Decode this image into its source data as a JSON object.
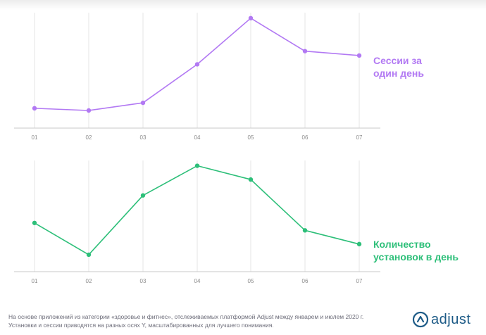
{
  "colors": {
    "sessions": "#b279f3",
    "installs": "#2dbf79",
    "grid": "#e6e6e6",
    "axis": "#c8c8c8",
    "tick_text": "#8a8a8a",
    "logo": "#1c5a86"
  },
  "chart_data": [
    {
      "type": "line",
      "categories": [
        "01",
        "02",
        "03",
        "04",
        "05",
        "06",
        "07"
      ],
      "series": [
        {
          "name": "Сессии за один день",
          "values": [
            0.18,
            0.16,
            0.23,
            0.58,
            1.0,
            0.7,
            0.66
          ]
        }
      ],
      "ylim": [
        0,
        1.05
      ],
      "grid": "vertical",
      "legend": "right",
      "y_axis_labels": false
    },
    {
      "type": "line",
      "categories": [
        "01",
        "02",
        "03",
        "04",
        "05",
        "06",
        "07"
      ],
      "series": [
        {
          "name": "Количество установок в день",
          "values": [
            0.46,
            0.16,
            0.72,
            1.0,
            0.87,
            0.39,
            0.26
          ]
        }
      ],
      "ylim": [
        0,
        1.05
      ],
      "grid": "vertical",
      "legend": "right",
      "y_axis_labels": false
    }
  ],
  "labels": {
    "sessions_line1": "Сессии за",
    "sessions_line2": "один день",
    "installs_line1": "Количество",
    "installs_line2": "установок в день"
  },
  "footnote": {
    "line1": "На основе приложений из категории «здоровье и фитнес», отслеживаемых платформой Adjust между январем и июлем 2020 г.",
    "line2": "Установки и сессии приводятся на разных осях Y, масштабированных для лучшего понимания."
  },
  "logo": {
    "text": "adjust",
    "icon": "adjust-logo-icon"
  }
}
